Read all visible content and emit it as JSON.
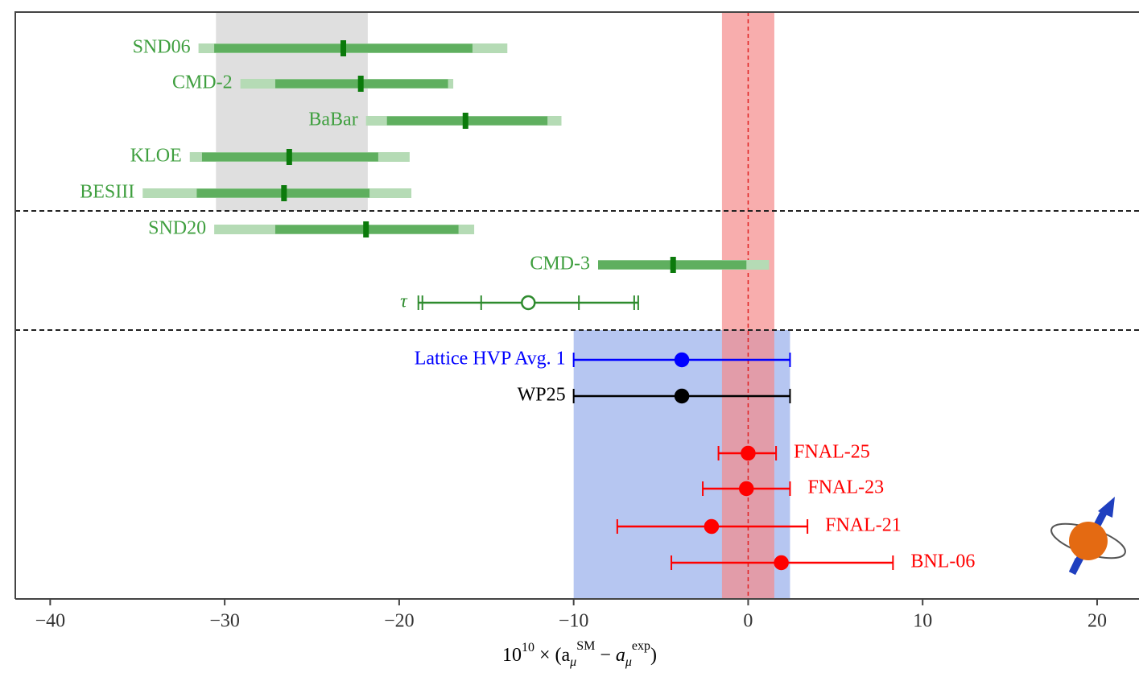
{
  "chart_data": {
    "type": "forest",
    "xlabel": [
      "10",
      "10",
      " × (",
      "a",
      "μ",
      "SM",
      " − ",
      "a",
      "μ",
      "exp",
      ")"
    ],
    "xlim": [
      -42,
      22.4
    ],
    "xticks": [
      {
        "value": -40,
        "label": "−40"
      },
      {
        "value": -30,
        "label": "−30"
      },
      {
        "value": -20,
        "label": "−20"
      },
      {
        "value": -10,
        "label": "−10"
      },
      0,
      10,
      20
    ],
    "reference_line": 0,
    "bands": [
      {
        "range": [
          -30.5,
          -21.8
        ],
        "color": "#d9d9d9",
        "rows": [
          0,
          4
        ]
      },
      {
        "range": [
          -10.0,
          2.4
        ],
        "color": "#a9bcef",
        "rows": [
          8,
          13
        ]
      },
      {
        "range": [
          -1.5,
          1.5
        ],
        "color": "#f58a8a",
        "rows": [
          0,
          13
        ]
      }
    ],
    "rows": [
      {
        "name": "SND06",
        "color": "#3f9f3f",
        "style": "bar",
        "label_side": "left",
        "value": -23.2,
        "inner": [
          -30.6,
          -15.8
        ],
        "outer": [
          -31.5,
          -13.8
        ]
      },
      {
        "name": "CMD-2",
        "color": "#3f9f3f",
        "style": "bar",
        "label_side": "left",
        "value": -22.2,
        "inner": [
          -27.1,
          -17.2
        ],
        "outer": [
          -29.1,
          -16.9
        ]
      },
      {
        "name": "BaBar",
        "color": "#3f9f3f",
        "style": "bar",
        "label_side": "left",
        "value": -16.2,
        "inner": [
          -20.7,
          -11.5
        ],
        "outer": [
          -21.9,
          -10.7
        ]
      },
      {
        "name": "KLOE",
        "color": "#3f9f3f",
        "style": "bar",
        "label_side": "left",
        "value": -26.3,
        "inner": [
          -31.3,
          -21.2
        ],
        "outer": [
          -32.0,
          -19.4
        ]
      },
      {
        "name": "BESIII",
        "color": "#3f9f3f",
        "style": "bar",
        "label_side": "left",
        "value": -26.6,
        "inner": [
          -31.6,
          -21.7
        ],
        "outer": [
          -34.7,
          -19.3
        ]
      },
      {
        "name": "SND20",
        "color": "#3f9f3f",
        "style": "bar",
        "label_side": "left",
        "value": -21.9,
        "inner": [
          -27.1,
          -16.6
        ],
        "outer": [
          -30.6,
          -15.7
        ]
      },
      {
        "name": "CMD-3",
        "color": "#3f9f3f",
        "style": "bar",
        "label_side": "left",
        "value": -4.3,
        "inner": [
          -8.6,
          -0.1
        ],
        "outer": [
          -8.6,
          1.2
        ]
      },
      {
        "name": "τ",
        "color": "#2e8b2e",
        "style": "open",
        "label_side": "left",
        "value": -12.6,
        "inner": [
          -15.3,
          -9.7
        ],
        "outer": [
          -18.9,
          -6.3
        ]
      },
      {
        "name": "Lattice HVP Avg. 1",
        "color": "#0000ff",
        "style": "dot",
        "label_side": "left",
        "value": -3.8,
        "outer": [
          -10.0,
          2.4
        ]
      },
      {
        "name": "WP25",
        "color": "#000000",
        "style": "dot",
        "label_side": "left",
        "value": -3.8,
        "outer": [
          -10.0,
          2.4
        ]
      },
      {
        "name": "FNAL-25",
        "color": "#ff0000",
        "style": "dot",
        "label_side": "right",
        "value": 0.0,
        "outer": [
          -1.7,
          1.6
        ]
      },
      {
        "name": "FNAL-23",
        "color": "#ff0000",
        "style": "dot",
        "label_side": "right",
        "value": -0.1,
        "outer": [
          -2.6,
          2.4
        ]
      },
      {
        "name": "FNAL-21",
        "color": "#ff0000",
        "style": "dot",
        "label_side": "right",
        "value": -2.1,
        "outer": [
          -7.5,
          3.4
        ]
      },
      {
        "name": "BNL-06",
        "color": "#ff0000",
        "style": "dot",
        "label_side": "right",
        "value": 1.9,
        "outer": [
          -4.4,
          8.3
        ]
      }
    ]
  }
}
